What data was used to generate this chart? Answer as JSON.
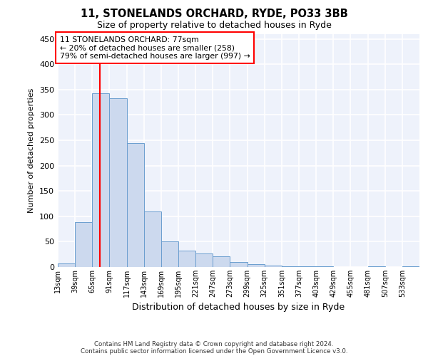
{
  "title_line1": "11, STONELANDS ORCHARD, RYDE, PO33 3BB",
  "title_line2": "Size of property relative to detached houses in Ryde",
  "xlabel": "Distribution of detached houses by size in Ryde",
  "ylabel": "Number of detached properties",
  "footnote1": "Contains HM Land Registry data © Crown copyright and database right 2024.",
  "footnote2": "Contains public sector information licensed under the Open Government Licence v3.0.",
  "bar_color": "#ccd9ee",
  "bar_edge_color": "#6b9ecf",
  "annotation_box_text": "11 STONELANDS ORCHARD: 77sqm\n← 20% of detached houses are smaller (258)\n79% of semi-detached houses are larger (997) →",
  "redline_x": 77,
  "categories": [
    "13sqm",
    "39sqm",
    "65sqm",
    "91sqm",
    "117sqm",
    "143sqm",
    "169sqm",
    "195sqm",
    "221sqm",
    "247sqm",
    "273sqm",
    "299sqm",
    "325sqm",
    "351sqm",
    "377sqm",
    "403sqm",
    "429sqm",
    "455sqm",
    "481sqm",
    "507sqm",
    "533sqm"
  ],
  "bin_starts": [
    13,
    39,
    65,
    91,
    117,
    143,
    169,
    195,
    221,
    247,
    273,
    299,
    325,
    351,
    377,
    403,
    429,
    455,
    481,
    507,
    533
  ],
  "bin_width": 26,
  "values": [
    7,
    88,
    343,
    333,
    245,
    110,
    50,
    33,
    26,
    21,
    10,
    5,
    3,
    2,
    1,
    1,
    0,
    0,
    1,
    0,
    1
  ],
  "ylim": [
    0,
    460
  ],
  "yticks": [
    0,
    50,
    100,
    150,
    200,
    250,
    300,
    350,
    400,
    450
  ],
  "background_color": "#eef2fb",
  "grid_color": "#ffffff",
  "fig_background": "#ffffff"
}
